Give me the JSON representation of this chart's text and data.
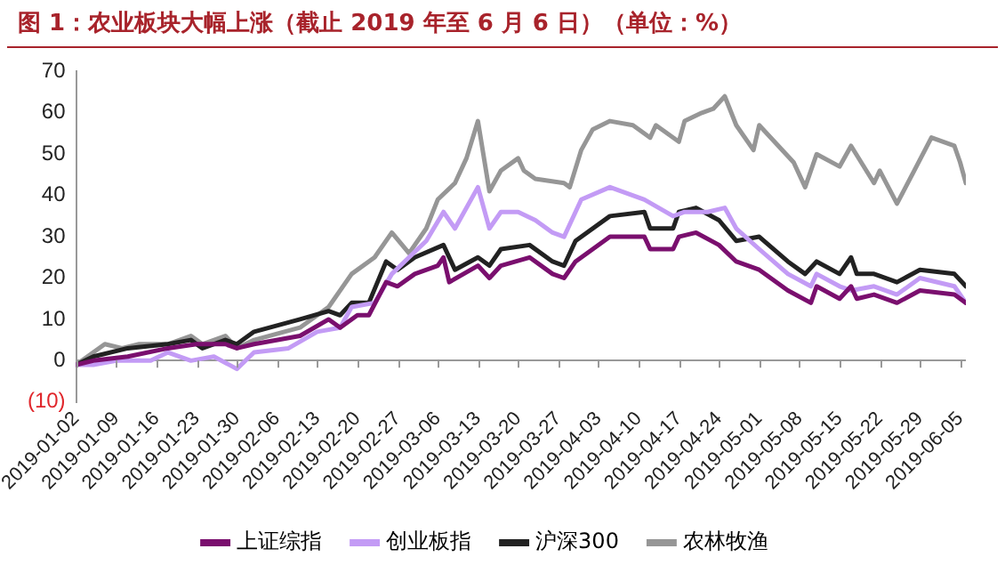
{
  "chart_data": {
    "type": "line",
    "title": "图 1：农业板块大幅上涨（截止 2019 年至 6 月 6 日）（单位：%）",
    "xlim": [
      "2019-01-02",
      "2019-06-06"
    ],
    "xticks": [
      "2019-01-02",
      "2019-01-09",
      "2019-01-16",
      "2019-01-23",
      "2019-01-30",
      "2019-02-06",
      "2019-02-13",
      "2019-02-20",
      "2019-02-27",
      "2019-03-06",
      "2019-03-13",
      "2019-03-20",
      "2019-03-27",
      "2019-04-03",
      "2019-04-10",
      "2019-04-17",
      "2019-04-24",
      "2019-05-01",
      "2019-05-08",
      "2019-05-15",
      "2019-05-22",
      "2019-05-29",
      "2019-06-05"
    ],
    "ylim": [
      -10,
      70
    ],
    "yticks": [
      {
        "value": -10,
        "label": "(10)"
      },
      0,
      10,
      20,
      30,
      40,
      50,
      60,
      70
    ],
    "grid": false,
    "legend": "bottom",
    "marker": "none",
    "line_style": "solid",
    "series": [
      {
        "name": "上证综指",
        "color": "#7a0f6e",
        "x": [
          "2019-01-02",
          "2019-01-05",
          "2019-01-11",
          "2019-01-18",
          "2019-01-23",
          "2019-01-28",
          "2019-01-30",
          "2019-02-02",
          "2019-02-10",
          "2019-02-15",
          "2019-02-17",
          "2019-02-20",
          "2019-02-22",
          "2019-02-25",
          "2019-02-27",
          "2019-03-02",
          "2019-03-06",
          "2019-03-07",
          "2019-03-08",
          "2019-03-13",
          "2019-03-15",
          "2019-03-17",
          "2019-03-22",
          "2019-03-26",
          "2019-03-28",
          "2019-03-30",
          "2019-04-05",
          "2019-04-11",
          "2019-04-12",
          "2019-04-16",
          "2019-04-17",
          "2019-04-20",
          "2019-04-24",
          "2019-04-27",
          "2019-05-01",
          "2019-05-06",
          "2019-05-10",
          "2019-05-11",
          "2019-05-15",
          "2019-05-17",
          "2019-05-18",
          "2019-05-21",
          "2019-05-25",
          "2019-05-29",
          "2019-06-04",
          "2019-06-06"
        ],
        "values": [
          -1,
          0,
          1,
          3,
          4,
          4,
          3,
          4,
          6,
          10,
          8,
          11,
          11,
          19,
          18,
          21,
          23,
          25,
          19,
          23,
          20,
          23,
          25,
          21,
          20,
          24,
          30,
          30,
          27,
          27,
          30,
          31,
          28,
          24,
          22,
          17,
          14,
          18,
          15,
          18,
          15,
          16,
          14,
          17,
          16,
          14
        ]
      },
      {
        "name": "创业板指",
        "color": "#c39bf5",
        "x": [
          "2019-01-02",
          "2019-01-05",
          "2019-01-09",
          "2019-01-15",
          "2019-01-18",
          "2019-01-22",
          "2019-01-26",
          "2019-01-30",
          "2019-02-02",
          "2019-02-08",
          "2019-02-13",
          "2019-02-17",
          "2019-02-19",
          "2019-02-23",
          "2019-02-26",
          "2019-03-01",
          "2019-03-04",
          "2019-03-07",
          "2019-03-09",
          "2019-03-13",
          "2019-03-15",
          "2019-03-17",
          "2019-03-20",
          "2019-03-23",
          "2019-03-26",
          "2019-03-28",
          "2019-03-31",
          "2019-04-05",
          "2019-04-11",
          "2019-04-16",
          "2019-04-18",
          "2019-04-22",
          "2019-04-25",
          "2019-04-27",
          "2019-05-01",
          "2019-05-06",
          "2019-05-10",
          "2019-05-11",
          "2019-05-15",
          "2019-05-17",
          "2019-05-21",
          "2019-05-25",
          "2019-05-29",
          "2019-06-04",
          "2019-06-06"
        ],
        "values": [
          -1,
          -1,
          0,
          0,
          2,
          0,
          1,
          -2,
          2,
          3,
          7,
          8,
          13,
          14,
          21,
          25,
          29,
          36,
          32,
          42,
          32,
          36,
          36,
          34,
          31,
          30,
          39,
          42,
          39,
          35,
          36,
          36,
          37,
          32,
          27,
          21,
          18,
          21,
          18,
          17,
          18,
          16,
          20,
          18,
          14
        ]
      },
      {
        "name": "沪深300",
        "color": "#222222",
        "x": [
          "2019-01-02",
          "2019-01-05",
          "2019-01-11",
          "2019-01-18",
          "2019-01-22",
          "2019-01-24",
          "2019-01-28",
          "2019-01-30",
          "2019-02-02",
          "2019-02-10",
          "2019-02-15",
          "2019-02-17",
          "2019-02-19",
          "2019-02-22",
          "2019-02-25",
          "2019-02-27",
          "2019-03-02",
          "2019-03-07",
          "2019-03-09",
          "2019-03-13",
          "2019-03-15",
          "2019-03-17",
          "2019-03-22",
          "2019-03-26",
          "2019-03-28",
          "2019-03-30",
          "2019-04-05",
          "2019-04-11",
          "2019-04-12",
          "2019-04-16",
          "2019-04-17",
          "2019-04-20",
          "2019-04-24",
          "2019-04-27",
          "2019-05-01",
          "2019-05-06",
          "2019-05-09",
          "2019-05-11",
          "2019-05-15",
          "2019-05-17",
          "2019-05-18",
          "2019-05-21",
          "2019-05-25",
          "2019-05-29",
          "2019-06-04",
          "2019-06-06"
        ],
        "values": [
          -1,
          1,
          3,
          4,
          5,
          3,
          5,
          4,
          7,
          10,
          12,
          11,
          14,
          14,
          24,
          22,
          25,
          28,
          22,
          25,
          23,
          27,
          28,
          24,
          23,
          29,
          35,
          36,
          32,
          32,
          36,
          37,
          34,
          29,
          30,
          24,
          21,
          24,
          21,
          25,
          21,
          21,
          19,
          22,
          21,
          18
        ]
      },
      {
        "name": "农林牧渔",
        "color": "#969696",
        "x": [
          "2019-01-02",
          "2019-01-07",
          "2019-01-10",
          "2019-01-13",
          "2019-01-18",
          "2019-01-22",
          "2019-01-24",
          "2019-01-28",
          "2019-01-30",
          "2019-02-02",
          "2019-02-10",
          "2019-02-15",
          "2019-02-19",
          "2019-02-23",
          "2019-02-26",
          "2019-03-01",
          "2019-03-04",
          "2019-03-06",
          "2019-03-09",
          "2019-03-11",
          "2019-03-13",
          "2019-03-15",
          "2019-03-17",
          "2019-03-20",
          "2019-03-21",
          "2019-03-23",
          "2019-03-28",
          "2019-03-29",
          "2019-03-31",
          "2019-04-02",
          "2019-04-05",
          "2019-04-09",
          "2019-04-12",
          "2019-04-13",
          "2019-04-17",
          "2019-04-18",
          "2019-04-21",
          "2019-04-23",
          "2019-04-25",
          "2019-04-27",
          "2019-04-30",
          "2019-05-01",
          "2019-05-07",
          "2019-05-09",
          "2019-05-11",
          "2019-05-15",
          "2019-05-17",
          "2019-05-21",
          "2019-05-22",
          "2019-05-25",
          "2019-05-28",
          "2019-05-31",
          "2019-06-04",
          "2019-06-05",
          "2019-06-06"
        ],
        "values": [
          -1,
          4,
          3,
          4,
          4,
          6,
          4,
          6,
          3,
          5,
          8,
          13,
          21,
          25,
          31,
          26,
          32,
          39,
          43,
          49,
          58,
          41,
          46,
          49,
          46,
          44,
          43,
          42,
          51,
          56,
          58,
          57,
          54,
          57,
          53,
          58,
          60,
          61,
          64,
          57,
          51,
          57,
          48,
          42,
          50,
          47,
          52,
          43,
          46,
          38,
          46,
          54,
          52,
          48,
          43
        ]
      }
    ]
  }
}
